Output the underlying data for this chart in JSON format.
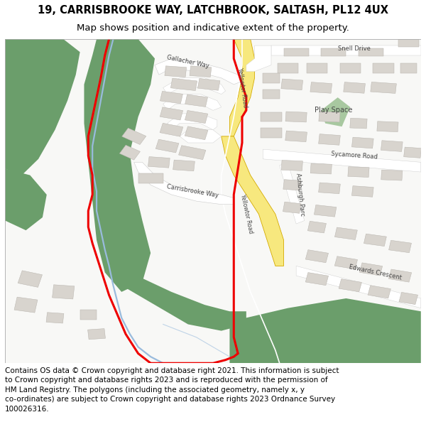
{
  "title_line1": "19, CARRISBROOKE WAY, LATCHBROOK, SALTASH, PL12 4UX",
  "title_line2": "Map shows position and indicative extent of the property.",
  "footer": "Contains OS data © Crown copyright and database right 2021. This information is subject to Crown copyright and database rights 2023 and is reproduced with the permission of HM Land Registry. The polygons (including the associated geometry, namely x, y co-ordinates) are subject to Crown copyright and database rights 2023 Ordnance Survey 100026316.",
  "fig_width": 6.0,
  "fig_height": 6.25,
  "dpi": 100,
  "map_bg": "#f8f8f6",
  "green_color": "#6b9e6b",
  "green_light": "#a8c8a0",
  "road_yellow_fill": "#f7e87e",
  "road_yellow_outline": "#d4aa00",
  "red_line_color": "#ee0000",
  "blue_line_color": "#99bbdd",
  "building_fill": "#d8d4ce",
  "building_edge": "#b8b4ae",
  "road_white": "#ffffff",
  "road_gray_edge": "#cccccc",
  "label_color": "#444444",
  "border_color": "#aaaaaa",
  "title_fontsize": 10.5,
  "subtitle_fontsize": 9.5,
  "footer_fontsize": 7.5
}
